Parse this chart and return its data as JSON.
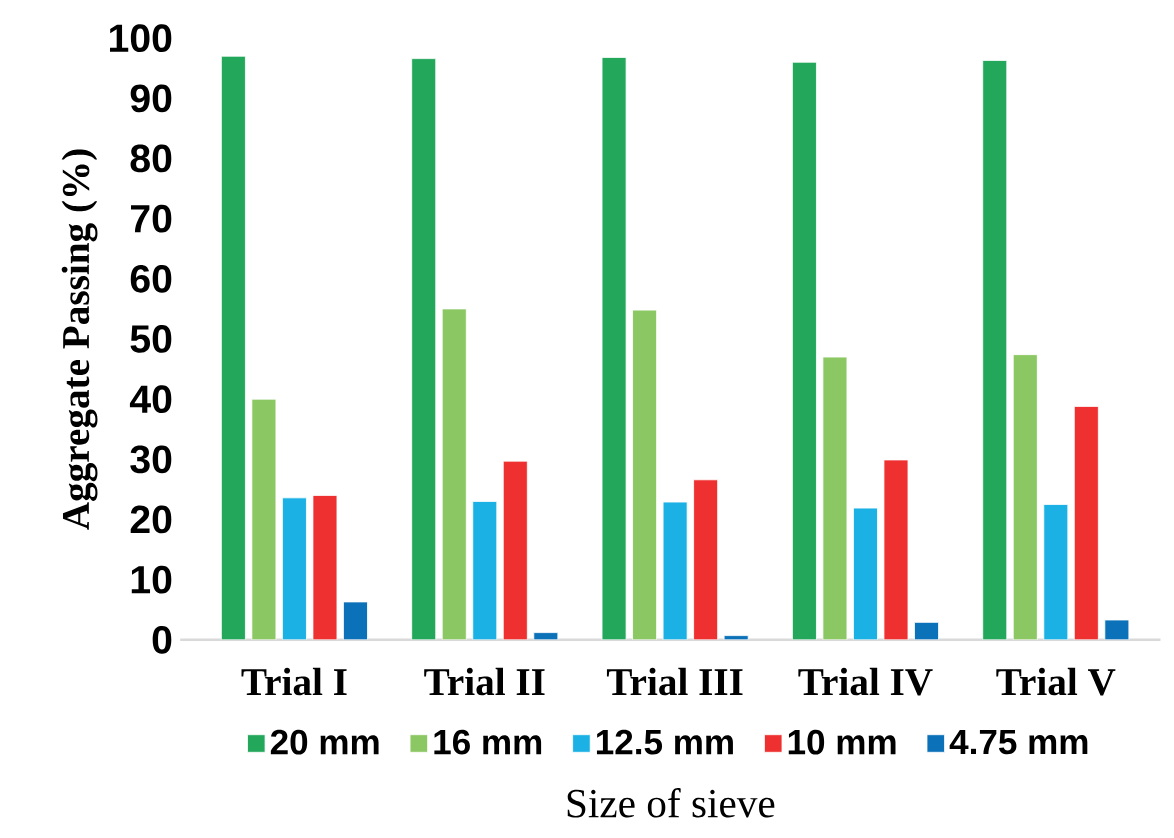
{
  "chart_data": {
    "type": "bar",
    "xlabel": "Size of sieve",
    "ylabel": "Aggregate Passing (%)",
    "categories": [
      "Trial I",
      "Trial II",
      "Trial III",
      "Trial IV",
      "Trial V"
    ],
    "series": [
      {
        "name": "20 mm",
        "color": "#22a75b",
        "values": [
          97,
          96.6,
          96.8,
          96,
          96.3
        ]
      },
      {
        "name": "16 mm",
        "color": "#8bc763",
        "values": [
          40,
          55,
          54.8,
          47,
          47.4
        ]
      },
      {
        "name": "12.5 mm",
        "color": "#1cb1e5",
        "values": [
          23.6,
          23,
          22.9,
          21.9,
          22.5
        ]
      },
      {
        "name": "10 mm",
        "color": "#ee3030",
        "values": [
          24,
          29.7,
          26.6,
          29.9,
          38.8
        ]
      },
      {
        "name": "4.75 mm",
        "color": "#0b71b8",
        "values": [
          6.3,
          1.2,
          0.7,
          2.9,
          3.3
        ]
      }
    ],
    "ylim": [
      0,
      100
    ],
    "yticks": [
      0,
      10,
      20,
      30,
      40,
      50,
      60,
      70,
      80,
      90,
      100
    ],
    "grid": false,
    "legend": "bottom"
  }
}
